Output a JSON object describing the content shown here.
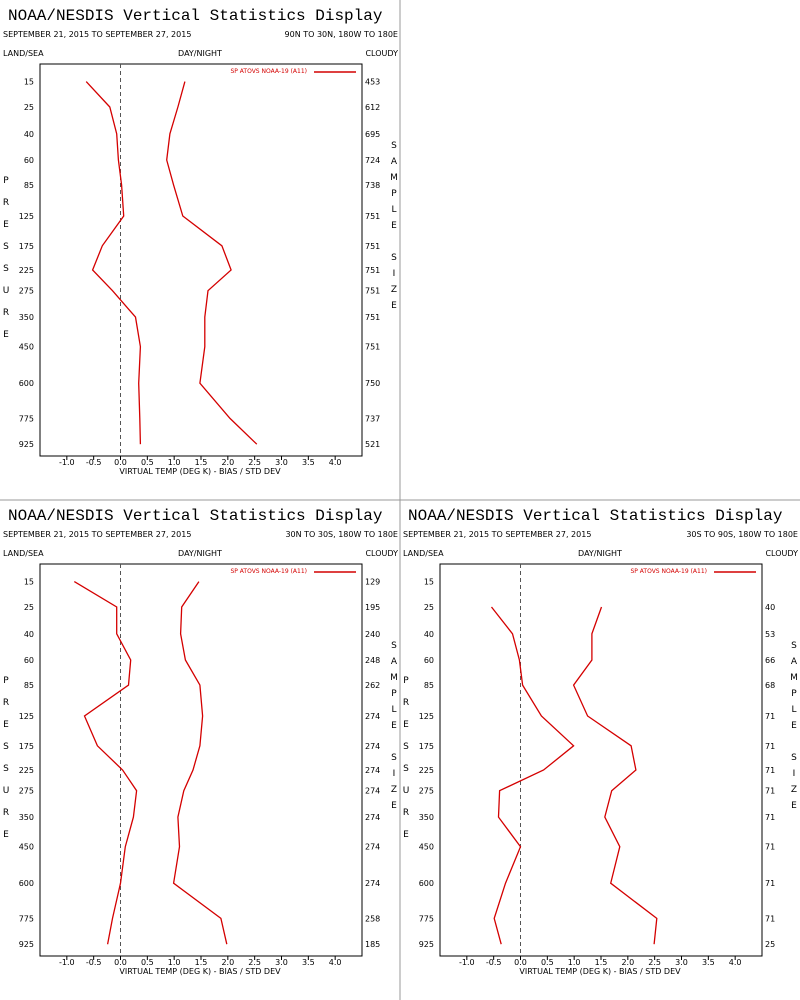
{
  "chart_data": [
    {
      "type": "line",
      "title": "NOAA/NESDIS Vertical Statistics Display",
      "date_range": "SEPTEMBER 21, 2015 TO SEPTEMBER 27, 2015",
      "region": "90N TO 30N, 180W TO 180E",
      "land_sea": "LAND/SEA",
      "day_night": "DAY/NIGHT",
      "cloudy": "CLOUDY",
      "y_label": "PRESSURE",
      "y2_label": "SAMPLE SIZE",
      "x_label": "VIRTUAL TEMP (DEG K) - BIAS / STD DEV",
      "xlim": [
        -1.5,
        4.5
      ],
      "xticks": [
        {
          "value": -1,
          "label": "-1.0"
        },
        -0.5,
        {
          "value": 0,
          "label": "0.0"
        },
        0.5,
        {
          "value": 1,
          "label": "1.0"
        },
        1.5,
        {
          "value": 2,
          "label": "2.0"
        },
        2.5,
        {
          "value": 3,
          "label": "3.0"
        },
        3.5,
        {
          "value": 4,
          "label": "4.0"
        }
      ],
      "ylim": [
        10,
        1000
      ],
      "yscale": "pressure",
      "categories": [
        15,
        25,
        40,
        60,
        85,
        125,
        175,
        225,
        275,
        350,
        450,
        600,
        775,
        925
      ],
      "sample_size": [
        453,
        612,
        695,
        724,
        738,
        751,
        751,
        751,
        751,
        751,
        751,
        750,
        737,
        521
      ],
      "series": [
        {
          "name": "SP ATOVS NOAA-19 (A11)",
          "color": "#d40000",
          "bias": [
            -0.64,
            -0.2,
            -0.07,
            -0.04,
            0.02,
            0.06,
            -0.34,
            -0.52,
            -0.15,
            0.28,
            0.37,
            0.34,
            0.36,
            0.37
          ],
          "std_dev": [
            1.2,
            1.07,
            0.92,
            0.86,
            0.99,
            1.16,
            1.89,
            2.06,
            1.63,
            1.57,
            1.57,
            1.48,
            2.04,
            2.54
          ]
        }
      ]
    },
    {
      "type": "line",
      "title": "NOAA/NESDIS Vertical Statistics Display",
      "date_range": "SEPTEMBER 21, 2015 TO SEPTEMBER 27, 2015",
      "region": "30N TO 30S, 180W TO 180E",
      "land_sea": "LAND/SEA",
      "day_night": "DAY/NIGHT",
      "cloudy": "CLOUDY",
      "y_label": "PRESSURE",
      "y2_label": "SAMPLE SIZE",
      "x_label": "VIRTUAL TEMP (DEG K) - BIAS / STD DEV",
      "xlim": [
        -1.5,
        4.5
      ],
      "xticks": [
        {
          "value": -1,
          "label": "-1.0"
        },
        -0.5,
        {
          "value": 0,
          "label": "0.0"
        },
        0.5,
        {
          "value": 1,
          "label": "1.0"
        },
        1.5,
        {
          "value": 2,
          "label": "2.0"
        },
        2.5,
        {
          "value": 3,
          "label": "3.0"
        },
        3.5,
        {
          "value": 4,
          "label": "4.0"
        }
      ],
      "ylim": [
        10,
        1000
      ],
      "yscale": "pressure",
      "categories": [
        15,
        25,
        40,
        60,
        85,
        125,
        175,
        225,
        275,
        350,
        450,
        600,
        775,
        925
      ],
      "sample_size": [
        129,
        195,
        240,
        248,
        262,
        274,
        274,
        274,
        274,
        274,
        274,
        274,
        258,
        185
      ],
      "series": [
        {
          "name": "SP ATOVS NOAA-19 (A11)",
          "color": "#d40000",
          "bias": [
            -0.86,
            -0.07,
            -0.07,
            0.19,
            0.15,
            -0.67,
            -0.43,
            0.04,
            0.3,
            0.24,
            0.09,
            0.0,
            -0.15,
            -0.24
          ],
          "std_dev": [
            1.46,
            1.14,
            1.12,
            1.21,
            1.48,
            1.53,
            1.48,
            1.35,
            1.18,
            1.07,
            1.1,
            0.99,
            1.87,
            1.98
          ]
        }
      ]
    },
    {
      "type": "line",
      "title": "NOAA/NESDIS Vertical Statistics Display",
      "date_range": "SEPTEMBER 21, 2015 TO SEPTEMBER 27, 2015",
      "region": "30S TO 90S, 180W TO 180E",
      "land_sea": "LAND/SEA",
      "day_night": "DAY/NIGHT",
      "cloudy": "CLOUDY",
      "y_label": "PRESSURE",
      "y2_label": "SAMPLE SIZE",
      "x_label": "VIRTUAL TEMP (DEG K) - BIAS / STD DEV",
      "xlim": [
        -1.5,
        4.5
      ],
      "xticks": [
        {
          "value": -1,
          "label": "-1.0"
        },
        -0.5,
        {
          "value": 0,
          "label": "0.0"
        },
        0.5,
        {
          "value": 1,
          "label": "1.0"
        },
        1.5,
        {
          "value": 2,
          "label": "2.0"
        },
        2.5,
        {
          "value": 3,
          "label": "3.0"
        },
        3.5,
        {
          "value": 4,
          "label": "4.0"
        }
      ],
      "ylim": [
        10,
        1000
      ],
      "yscale": "pressure",
      "categories": [
        15,
        25,
        40,
        60,
        85,
        125,
        175,
        225,
        275,
        350,
        450,
        600,
        775,
        925
      ],
      "sample_size": [
        null,
        40,
        53,
        66,
        68,
        71,
        71,
        71,
        71,
        71,
        71,
        71,
        71,
        25
      ],
      "series": [
        {
          "name": "SP ATOVS NOAA-19 (A11)",
          "color": "#d40000",
          "bias": [
            null,
            -0.54,
            -0.15,
            -0.02,
            0.04,
            0.39,
            0.99,
            0.43,
            -0.39,
            -0.41,
            0.0,
            -0.28,
            -0.49,
            -0.36
          ],
          "std_dev": [
            null,
            1.51,
            1.33,
            1.33,
            0.99,
            1.25,
            2.06,
            2.15,
            1.7,
            1.57,
            1.85,
            1.68,
            2.54,
            2.49
          ]
        }
      ]
    }
  ]
}
